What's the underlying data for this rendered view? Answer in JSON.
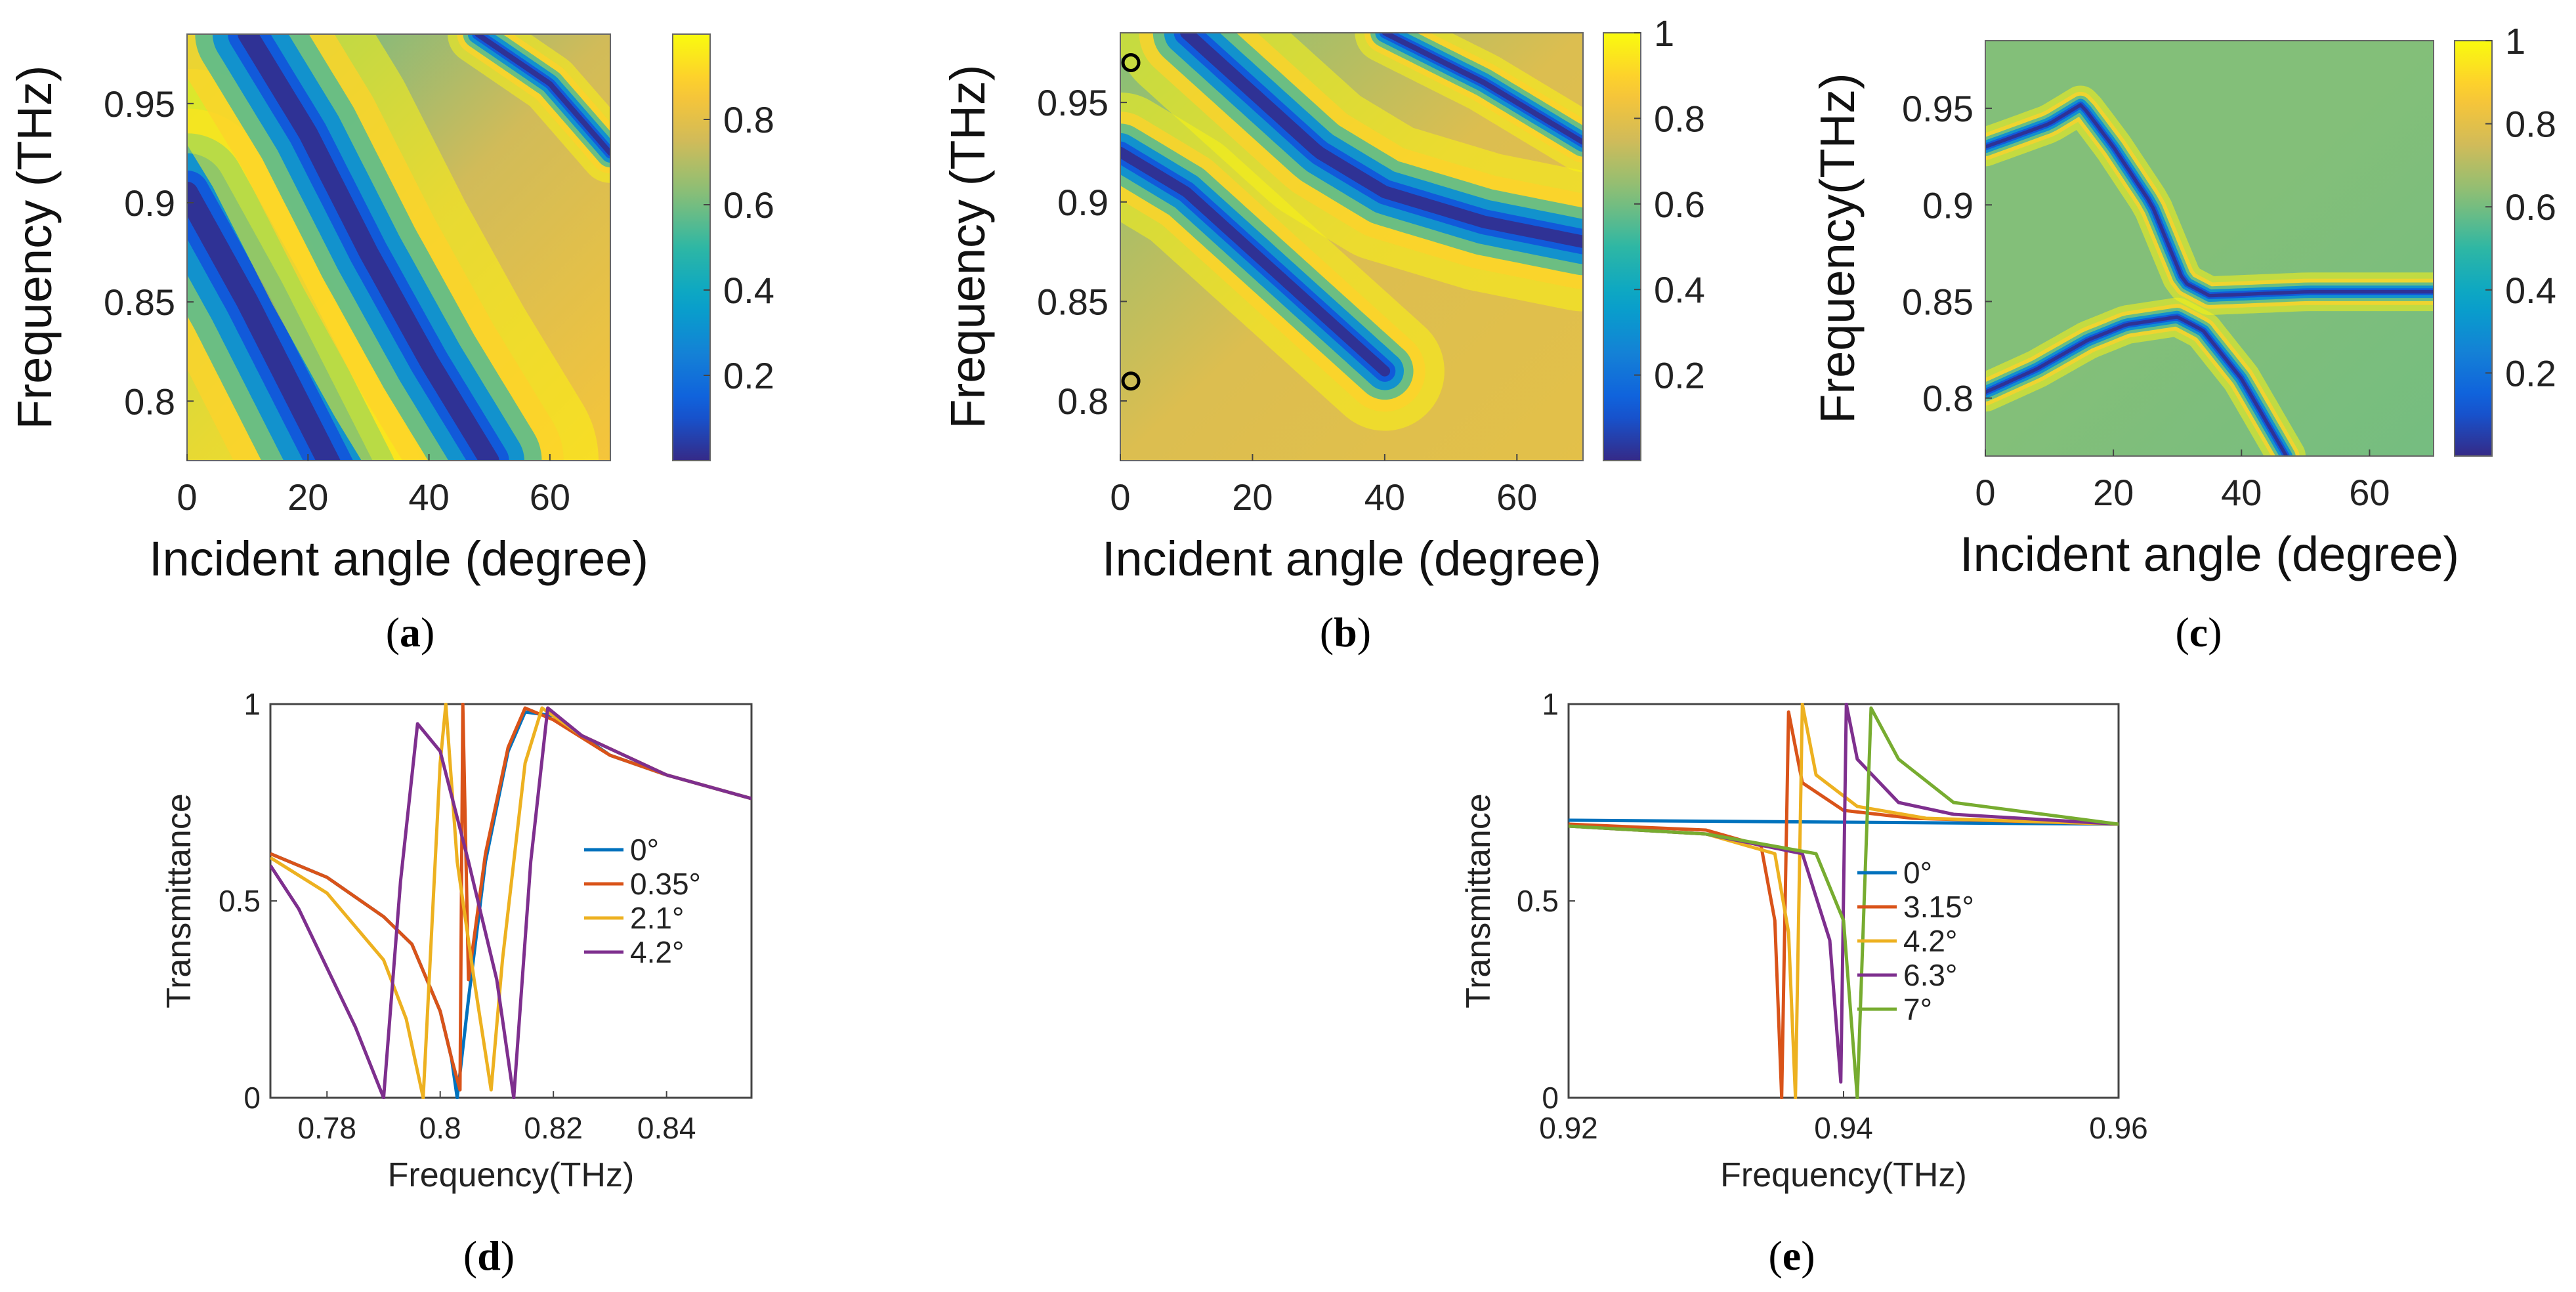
{
  "colors": {
    "parula": [
      "#352a87",
      "#0f5cdd",
      "#1481d6",
      "#06a4ca",
      "#2eb7a4",
      "#87bf77",
      "#d1bb59",
      "#fec832",
      "#f9fb0e"
    ],
    "series": [
      "#0072bd",
      "#d95319",
      "#edb120",
      "#7e2f8e",
      "#77ac30"
    ],
    "axes": "#222222",
    "marker": "#000000"
  },
  "panels": {
    "a": {
      "tag": "a"
    },
    "b": {
      "tag": "b"
    },
    "c": {
      "tag": "c"
    },
    "d": {
      "tag": "d"
    },
    "e": {
      "tag": "e"
    }
  },
  "chart_data": [
    {
      "id": "a",
      "type": "heatmap",
      "xlabel": "Incident angle (degree)",
      "ylabel": "Frequency (THz)",
      "xlim": [
        0,
        70
      ],
      "ylim": [
        0.77,
        0.985
      ],
      "xticks": [
        "0",
        "20",
        "40",
        "60"
      ],
      "xtick_values": [
        0,
        20,
        40,
        60
      ],
      "yticks": [
        "0.8",
        "0.85",
        "0.9",
        "0.95"
      ],
      "ytick_values": [
        0.8,
        0.85,
        0.9,
        0.95
      ],
      "colorbar": {
        "range": [
          0,
          1
        ],
        "ticks": [
          "0.2",
          "0.4",
          "0.6",
          "0.8"
        ],
        "tick_values": [
          0.2,
          0.4,
          0.6,
          0.8
        ]
      },
      "features": [
        {
          "kind": "dip",
          "path": [
            [
              0,
              0.905
            ],
            [
              10,
              0.85
            ],
            [
              20,
              0.79
            ],
            [
              25,
              0.76
            ]
          ],
          "width": 0.025
        },
        {
          "kind": "dip",
          "path": [
            [
              10,
              0.985
            ],
            [
              20,
              0.935
            ],
            [
              30,
              0.875
            ],
            [
              40,
              0.82
            ],
            [
              50,
              0.77
            ]
          ],
          "width": 0.022
        },
        {
          "kind": "dip",
          "path": [
            [
              48,
              0.985
            ],
            [
              60,
              0.96
            ],
            [
              70,
              0.925
            ]
          ],
          "width": 0.006
        }
      ]
    },
    {
      "id": "b",
      "type": "heatmap",
      "xlabel": "Incident angle (degree)",
      "ylabel": "Frequency (THz)",
      "xlim": [
        0,
        70
      ],
      "ylim": [
        0.77,
        0.985
      ],
      "xticks": [
        "0",
        "20",
        "40",
        "60"
      ],
      "xtick_values": [
        0,
        20,
        40,
        60
      ],
      "yticks": [
        "0.8",
        "0.85",
        "0.9",
        "0.95"
      ],
      "ytick_values": [
        0.8,
        0.85,
        0.9,
        0.95
      ],
      "colorbar": {
        "range": [
          0,
          1
        ],
        "ticks": [
          "0.2",
          "0.4",
          "0.6",
          "0.8",
          "1"
        ],
        "tick_values": [
          0.2,
          0.4,
          0.6,
          0.8,
          1.0
        ]
      },
      "features": [
        {
          "kind": "dip",
          "path": [
            [
              0,
              0.925
            ],
            [
              10,
              0.905
            ],
            [
              20,
              0.875
            ],
            [
              30,
              0.845
            ],
            [
              40,
              0.815
            ]
          ],
          "width": 0.012
        },
        {
          "kind": "dip",
          "path": [
            [
              10,
              0.985
            ],
            [
              20,
              0.955
            ],
            [
              30,
              0.925
            ],
            [
              40,
              0.905
            ],
            [
              55,
              0.89
            ],
            [
              70,
              0.88
            ]
          ],
          "width": 0.014
        },
        {
          "kind": "dip",
          "path": [
            [
              40,
              0.985
            ],
            [
              55,
              0.96
            ],
            [
              70,
              0.93
            ]
          ],
          "width": 0.006
        }
      ],
      "markers": [
        {
          "x": 1,
          "y": 0.97
        },
        {
          "x": 1,
          "y": 0.81
        }
      ]
    },
    {
      "id": "c",
      "type": "heatmap",
      "xlabel": "Incident angle (degree)",
      "ylabel": "Frequency(THz)",
      "xlim": [
        0,
        70
      ],
      "ylim": [
        0.77,
        0.985
      ],
      "xticks": [
        "0",
        "20",
        "40",
        "60"
      ],
      "xtick_values": [
        0,
        20,
        40,
        60
      ],
      "yticks": [
        "0.8",
        "0.85",
        "0.9",
        "0.95"
      ],
      "ytick_values": [
        0.8,
        0.85,
        0.9,
        0.95
      ],
      "colorbar": {
        "range": [
          0,
          1
        ],
        "ticks": [
          "0.2",
          "0.4",
          "0.6",
          "0.8",
          "1"
        ],
        "tick_values": [
          0.2,
          0.4,
          0.6,
          0.8,
          1.0
        ]
      },
      "features": [
        {
          "kind": "dip",
          "path": [
            [
              0,
              0.93
            ],
            [
              10,
              0.942
            ],
            [
              15,
              0.952
            ],
            [
              20,
              0.93
            ],
            [
              26,
              0.9
            ],
            [
              31,
              0.86
            ],
            [
              35,
              0.853
            ],
            [
              50,
              0.855
            ],
            [
              70,
              0.855
            ]
          ],
          "width": 0.004
        },
        {
          "kind": "dip",
          "path": [
            [
              0,
              0.803
            ],
            [
              8,
              0.815
            ],
            [
              16,
              0.83
            ],
            [
              22,
              0.838
            ],
            [
              30,
              0.842
            ],
            [
              34,
              0.835
            ],
            [
              40,
              0.81
            ],
            [
              47,
              0.77
            ]
          ],
          "width": 0.004
        }
      ]
    },
    {
      "id": "d",
      "type": "line",
      "xlabel": "Frequency(THz)",
      "ylabel": "Transmittance",
      "xlim": [
        0.77,
        0.855
      ],
      "ylim": [
        0,
        1
      ],
      "xticks": [
        "0.78",
        "0.8",
        "0.82",
        "0.84"
      ],
      "xtick_values": [
        0.78,
        0.8,
        0.82,
        0.84
      ],
      "yticks": [
        "0",
        "0.5",
        "1"
      ],
      "ytick_values": [
        0,
        0.5,
        1
      ],
      "legend_position": "center-right",
      "series": [
        {
          "name": "0°",
          "x": [
            0.77,
            0.78,
            0.79,
            0.795,
            0.8,
            0.802,
            0.803,
            0.805,
            0.808,
            0.812,
            0.815,
            0.82,
            0.83,
            0.84,
            0.855
          ],
          "y": [
            0.62,
            0.56,
            0.46,
            0.39,
            0.22,
            0.1,
            0.0,
            0.25,
            0.6,
            0.88,
            0.98,
            0.97,
            0.87,
            0.82,
            0.76
          ]
        },
        {
          "name": "0.35°",
          "x": [
            0.77,
            0.78,
            0.79,
            0.795,
            0.8,
            0.802,
            0.8035,
            0.804,
            0.805,
            0.808,
            0.812,
            0.815,
            0.82,
            0.83,
            0.84,
            0.855
          ],
          "y": [
            0.62,
            0.56,
            0.46,
            0.39,
            0.22,
            0.1,
            0.02,
            1.0,
            0.3,
            0.62,
            0.89,
            0.99,
            0.96,
            0.87,
            0.82,
            0.76
          ]
        },
        {
          "name": "2.1°",
          "x": [
            0.77,
            0.78,
            0.79,
            0.794,
            0.797,
            0.8,
            0.801,
            0.803,
            0.806,
            0.809,
            0.811,
            0.815,
            0.818,
            0.825,
            0.84,
            0.855
          ],
          "y": [
            0.61,
            0.52,
            0.35,
            0.2,
            0.0,
            0.85,
            1.0,
            0.6,
            0.3,
            0.02,
            0.35,
            0.85,
            0.99,
            0.92,
            0.82,
            0.76
          ]
        },
        {
          "name": "4.2°",
          "x": [
            0.77,
            0.775,
            0.78,
            0.785,
            0.79,
            0.793,
            0.796,
            0.8,
            0.805,
            0.81,
            0.813,
            0.816,
            0.819,
            0.825,
            0.84,
            0.855
          ],
          "y": [
            0.59,
            0.48,
            0.33,
            0.18,
            0.0,
            0.55,
            0.95,
            0.88,
            0.6,
            0.3,
            0.0,
            0.6,
            0.99,
            0.92,
            0.82,
            0.76
          ]
        }
      ]
    },
    {
      "id": "e",
      "type": "line",
      "xlabel": "Frequency(THz)",
      "ylabel": "Transmittance",
      "xlim": [
        0.92,
        0.96
      ],
      "ylim": [
        0,
        1
      ],
      "xticks": [
        "0.92",
        "0.94",
        "0.96"
      ],
      "xtick_values": [
        0.92,
        0.94,
        0.96
      ],
      "yticks": [
        "0",
        "0.5",
        "1"
      ],
      "ytick_values": [
        0,
        0.5,
        1
      ],
      "legend_position": "center-right",
      "series": [
        {
          "name": "0°",
          "x": [
            0.92,
            0.96
          ],
          "y": [
            0.705,
            0.695
          ]
        },
        {
          "name": "3.15°",
          "x": [
            0.92,
            0.93,
            0.934,
            0.935,
            0.9355,
            0.936,
            0.937,
            0.94,
            0.945,
            0.96
          ],
          "y": [
            0.695,
            0.68,
            0.64,
            0.45,
            0.0,
            0.98,
            0.8,
            0.73,
            0.71,
            0.695
          ]
        },
        {
          "name": "4.2°",
          "x": [
            0.92,
            0.93,
            0.935,
            0.936,
            0.9365,
            0.937,
            0.938,
            0.941,
            0.946,
            0.96
          ],
          "y": [
            0.69,
            0.67,
            0.62,
            0.42,
            0.0,
            1.0,
            0.82,
            0.74,
            0.71,
            0.695
          ]
        },
        {
          "name": "6.3°",
          "x": [
            0.92,
            0.93,
            0.937,
            0.939,
            0.9398,
            0.9402,
            0.941,
            0.944,
            0.948,
            0.96
          ],
          "y": [
            0.69,
            0.67,
            0.62,
            0.4,
            0.04,
            1.0,
            0.86,
            0.75,
            0.72,
            0.695
          ]
        },
        {
          "name": "7°",
          "x": [
            0.92,
            0.93,
            0.938,
            0.94,
            0.941,
            0.9415,
            0.942,
            0.944,
            0.948,
            0.96
          ],
          "y": [
            0.69,
            0.67,
            0.62,
            0.45,
            0.0,
            0.5,
            0.99,
            0.86,
            0.75,
            0.695
          ]
        }
      ]
    }
  ]
}
